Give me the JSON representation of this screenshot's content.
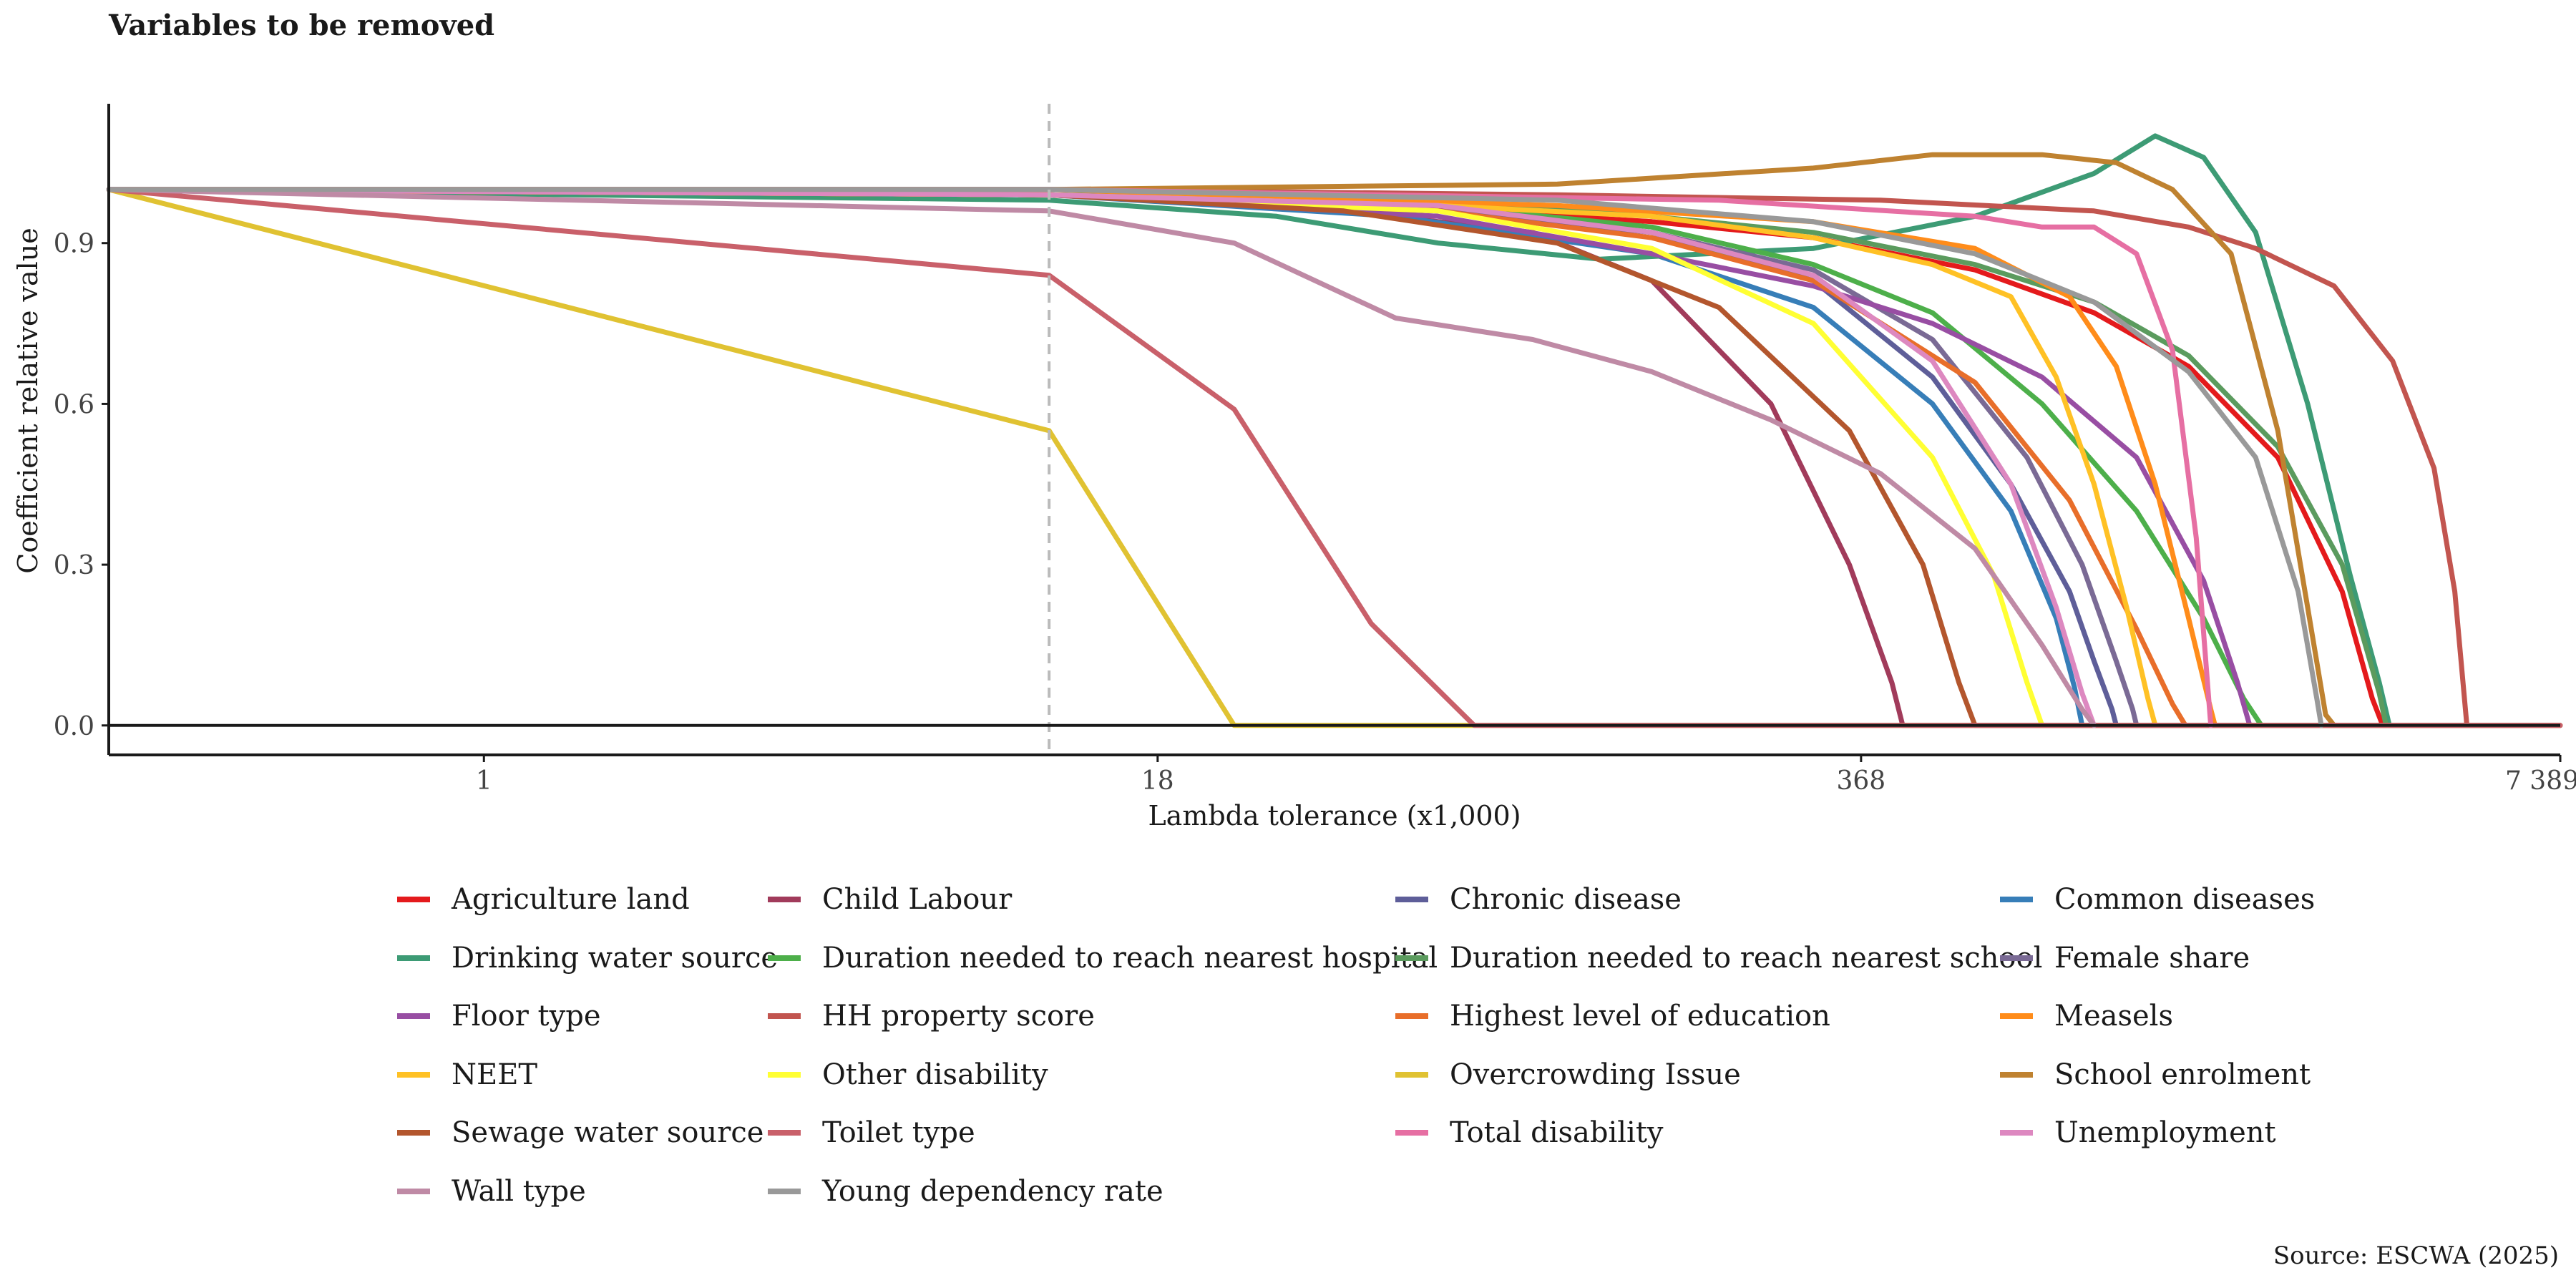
{
  "chart_data": {
    "type": "line",
    "title": "Variables to be removed",
    "xlabel": "Lambda tolerance (x1,000)",
    "ylabel": "Coefficient relative value",
    "x_scale": "log",
    "xlim": [
      0.2,
      7389
    ],
    "ylim": [
      -0.055,
      1.16
    ],
    "x_ticks": [
      1,
      18,
      368,
      7389
    ],
    "x_tick_labels": [
      "1",
      "18",
      "368",
      "7 389"
    ],
    "y_ticks": [
      0.0,
      0.3,
      0.6,
      0.9
    ],
    "y_tick_labels": [
      "0.0",
      "0.3",
      "0.6",
      "0.9"
    ],
    "reference_line_x": 11.3,
    "zero_line": true,
    "grid": false,
    "legend_position": "bottom",
    "series": [
      {
        "name": "Agriculture land",
        "color": "#e41a1c",
        "x": [
          0.2,
          11.3,
          50,
          150,
          300,
          600,
          1000,
          1500,
          2200,
          2900,
          3300,
          3450,
          3500
        ],
        "y": [
          1.0,
          0.99,
          0.97,
          0.94,
          0.91,
          0.85,
          0.77,
          0.67,
          0.5,
          0.25,
          0.05,
          0.0,
          0.0
        ]
      },
      {
        "name": "Child Labour",
        "color": "#a13b5b",
        "x": [
          0.2,
          11.3,
          40,
          90,
          150,
          250,
          350,
          420,
          440,
          7389
        ],
        "y": [
          1.0,
          0.99,
          0.96,
          0.92,
          0.83,
          0.6,
          0.3,
          0.08,
          0.0,
          0.0
        ]
      },
      {
        "name": "Chronic disease",
        "color": "#5e5e99",
        "x": [
          0.2,
          11.3,
          60,
          150,
          300,
          500,
          700,
          900,
          1000,
          1080,
          1100
        ],
        "y": [
          1.0,
          0.99,
          0.96,
          0.92,
          0.83,
          0.65,
          0.45,
          0.25,
          0.12,
          0.03,
          0.0
        ]
      },
      {
        "name": "Common diseases",
        "color": "#377eb8",
        "x": [
          0.2,
          11.3,
          50,
          150,
          300,
          500,
          700,
          850,
          920,
          950
        ],
        "y": [
          1.0,
          0.99,
          0.95,
          0.88,
          0.78,
          0.6,
          0.4,
          0.2,
          0.07,
          0.0
        ]
      },
      {
        "name": "Drinking water source",
        "color": "#3d9b75",
        "x": [
          0.2,
          11.3,
          30,
          60,
          120,
          300,
          600,
          1000,
          1300,
          1600,
          2000,
          2500,
          3000,
          3400,
          3550
        ],
        "y": [
          1.0,
          0.98,
          0.95,
          0.9,
          0.87,
          0.89,
          0.95,
          1.03,
          1.1,
          1.06,
          0.92,
          0.6,
          0.28,
          0.08,
          0.0
        ]
      },
      {
        "name": "Duration needed to reach nearest hospital",
        "color": "#4daf4a",
        "x": [
          0.2,
          11.3,
          60,
          150,
          300,
          500,
          800,
          1200,
          1600,
          1900,
          2050
        ],
        "y": [
          1.0,
          0.99,
          0.97,
          0.93,
          0.86,
          0.77,
          0.6,
          0.4,
          0.2,
          0.05,
          0.0
        ]
      },
      {
        "name": "Duration needed to reach nearest school",
        "color": "#5b9b5e",
        "x": [
          0.2,
          11.3,
          60,
          150,
          300,
          600,
          1000,
          1500,
          2200,
          2900,
          3400,
          3500
        ],
        "y": [
          1.0,
          0.99,
          0.98,
          0.95,
          0.92,
          0.86,
          0.79,
          0.69,
          0.52,
          0.3,
          0.06,
          0.0
        ]
      },
      {
        "name": "Female share",
        "color": "#7a6a95",
        "x": [
          0.2,
          11.3,
          60,
          150,
          300,
          500,
          750,
          950,
          1100,
          1180,
          1200
        ],
        "y": [
          1.0,
          0.99,
          0.97,
          0.92,
          0.85,
          0.72,
          0.5,
          0.3,
          0.12,
          0.03,
          0.0
        ]
      },
      {
        "name": "Floor type",
        "color": "#984ea3",
        "x": [
          0.2,
          11.3,
          60,
          150,
          300,
          500,
          800,
          1200,
          1600,
          1850,
          1950
        ],
        "y": [
          1.0,
          0.99,
          0.95,
          0.88,
          0.82,
          0.75,
          0.65,
          0.5,
          0.27,
          0.08,
          0.0
        ]
      },
      {
        "name": "HH property score",
        "color": "#c2554f",
        "x": [
          0.2,
          11.3,
          100,
          400,
          1000,
          1500,
          2000,
          2800,
          3600,
          4300,
          4700,
          4950
        ],
        "y": [
          1.0,
          1.0,
          0.99,
          0.98,
          0.96,
          0.93,
          0.89,
          0.82,
          0.68,
          0.48,
          0.25,
          0.0
        ]
      },
      {
        "name": "Highest level of education",
        "color": "#e86e2a",
        "x": [
          0.2,
          11.3,
          60,
          150,
          300,
          600,
          900,
          1200,
          1400,
          1480
        ],
        "y": [
          1.0,
          0.99,
          0.96,
          0.91,
          0.83,
          0.64,
          0.42,
          0.18,
          0.04,
          0.0
        ]
      },
      {
        "name": "Measels",
        "color": "#ff8c1a",
        "x": [
          0.2,
          11.3,
          100,
          300,
          600,
          900,
          1100,
          1300,
          1500,
          1650,
          1680
        ],
        "y": [
          1.0,
          1.0,
          0.97,
          0.94,
          0.89,
          0.8,
          0.67,
          0.45,
          0.2,
          0.03,
          0.0
        ]
      },
      {
        "name": "NEET",
        "color": "#ffc125",
        "x": [
          0.2,
          11.3,
          60,
          150,
          300,
          500,
          700,
          850,
          1000,
          1150,
          1260,
          1300
        ],
        "y": [
          1.0,
          0.99,
          0.97,
          0.95,
          0.91,
          0.86,
          0.8,
          0.65,
          0.45,
          0.22,
          0.05,
          0.0
        ]
      },
      {
        "name": "Other disability",
        "color": "#ffff33",
        "x": [
          0.2,
          11.3,
          60,
          150,
          300,
          500,
          650,
          750,
          800
        ],
        "y": [
          1.0,
          0.99,
          0.96,
          0.89,
          0.75,
          0.5,
          0.28,
          0.08,
          0.0
        ]
      },
      {
        "name": "Overcrowding Issue",
        "color": "#e0c232",
        "x": [
          0.2,
          11.3,
          25,
          7389
        ],
        "y": [
          1.0,
          0.55,
          0.0,
          0.0
        ]
      },
      {
        "name": "School enrolment",
        "color": "#bf8230",
        "x": [
          0.2,
          11.3,
          100,
          300,
          500,
          800,
          1100,
          1400,
          1800,
          2200,
          2500,
          2700,
          2800
        ],
        "y": [
          1.0,
          1.0,
          1.01,
          1.04,
          1.065,
          1.065,
          1.05,
          1.0,
          0.88,
          0.55,
          0.22,
          0.02,
          0.0
        ]
      },
      {
        "name": "Sewage water source",
        "color": "#b3562d",
        "x": [
          0.2,
          11.3,
          40,
          100,
          200,
          350,
          480,
          560,
          600,
          7389
        ],
        "y": [
          1.0,
          0.99,
          0.96,
          0.9,
          0.78,
          0.55,
          0.3,
          0.08,
          0.0,
          0.0
        ]
      },
      {
        "name": "Toilet type",
        "color": "#c9606a",
        "x": [
          0.2,
          11.3,
          25,
          45,
          70,
          7389
        ],
        "y": [
          1.0,
          0.84,
          0.59,
          0.19,
          0.0,
          0.0
        ]
      },
      {
        "name": "Total disability",
        "color": "#e66fa3",
        "x": [
          0.2,
          11.3,
          200,
          600,
          800,
          1000,
          1200,
          1400,
          1550,
          1650
        ],
        "y": [
          1.0,
          1.0,
          0.98,
          0.95,
          0.93,
          0.93,
          0.88,
          0.7,
          0.35,
          0.0
        ]
      },
      {
        "name": "Unemployment",
        "color": "#dd88c0",
        "x": [
          0.2,
          11.3,
          60,
          150,
          300,
          500,
          700,
          850,
          950,
          1000
        ],
        "y": [
          1.0,
          0.99,
          0.97,
          0.92,
          0.84,
          0.68,
          0.45,
          0.22,
          0.06,
          0.0
        ]
      },
      {
        "name": "Wall type",
        "color": "#bf8aa5",
        "x": [
          0.2,
          11.3,
          25,
          50,
          90,
          150,
          250,
          400,
          600,
          800,
          950,
          1000
        ],
        "y": [
          1.0,
          0.96,
          0.9,
          0.76,
          0.72,
          0.66,
          0.57,
          0.47,
          0.33,
          0.15,
          0.03,
          0.0
        ]
      },
      {
        "name": "Young dependency rate",
        "color": "#999999",
        "x": [
          0.2,
          11.3,
          100,
          300,
          600,
          1000,
          1500,
          2000,
          2400,
          2600,
          2650
        ],
        "y": [
          1.0,
          1.0,
          0.98,
          0.94,
          0.88,
          0.79,
          0.66,
          0.5,
          0.25,
          0.05,
          0.0
        ]
      }
    ]
  },
  "source": "Source: ESCWA (2025)"
}
